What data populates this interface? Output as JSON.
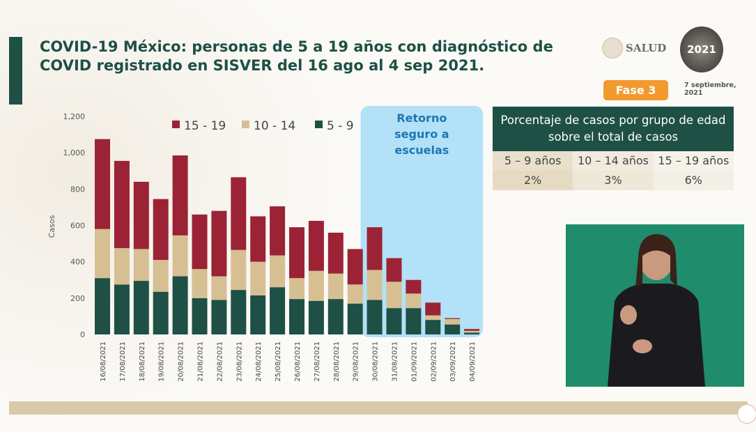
{
  "header": {
    "title": "COVID-19 México: personas de 5 a 19 años con diagnóstico de COVID registrado en SISVER del 16 ago al 4 sep 2021.",
    "logo_text": "SALUD",
    "logo2021_text": "2021",
    "phase_badge": "Fase 3",
    "date": "7 septiembre, 2021"
  },
  "colors": {
    "accent": "#1e5045",
    "s15_19": "#9b2335",
    "s10_14": "#d6bf92",
    "s5_9": "#1e5045",
    "highlight": "#b3e1f7",
    "phase": "#f29a2e"
  },
  "annotation": "Retorno seguro a escuelas",
  "table": {
    "title": "Porcentaje de casos por grupo de edad sobre el total de casos",
    "headers": [
      "5 – 9 años",
      "10 – 14 años",
      "15 – 19 años"
    ],
    "values": [
      "2%",
      "3%",
      "6%"
    ]
  },
  "chart_data": {
    "type": "bar",
    "stacked": true,
    "ylabel": "Casos",
    "xlabel": "",
    "ylim": [
      0,
      1200
    ],
    "yticks": [
      "0",
      "200",
      "400",
      "600",
      "800",
      "1,000",
      "1,200"
    ],
    "grid": false,
    "legend_placement": "top",
    "categories": [
      "16/08/2021",
      "17/08/2021",
      "18/08/2021",
      "19/08/2021",
      "20/08/2021",
      "21/08/2021",
      "22/08/2021",
      "23/08/2021",
      "24/08/2021",
      "25/08/2021",
      "26/08/2021",
      "27/08/2021",
      "28/08/2021",
      "29/08/2021",
      "30/08/2021",
      "31/08/2021",
      "01/09/2021",
      "02/09/2021",
      "03/09/2021",
      "04/09/2021"
    ],
    "highlight_range": [
      "30/08/2021",
      "04/09/2021"
    ],
    "series": [
      {
        "name": "5 - 9",
        "values": [
          310,
          275,
          295,
          235,
          320,
          200,
          190,
          245,
          215,
          260,
          195,
          185,
          195,
          170,
          190,
          145,
          145,
          80,
          55,
          10
        ]
      },
      {
        "name": "10 - 14",
        "values": [
          270,
          200,
          175,
          175,
          225,
          160,
          130,
          220,
          185,
          175,
          115,
          165,
          140,
          105,
          165,
          145,
          80,
          25,
          30,
          10
        ]
      },
      {
        "name": "15 - 19",
        "values": [
          495,
          480,
          370,
          335,
          440,
          300,
          360,
          400,
          250,
          270,
          280,
          275,
          225,
          195,
          235,
          130,
          75,
          70,
          5,
          10
        ]
      }
    ],
    "legend_order": [
      "15 - 19",
      "10 - 14",
      "5 - 9"
    ]
  }
}
